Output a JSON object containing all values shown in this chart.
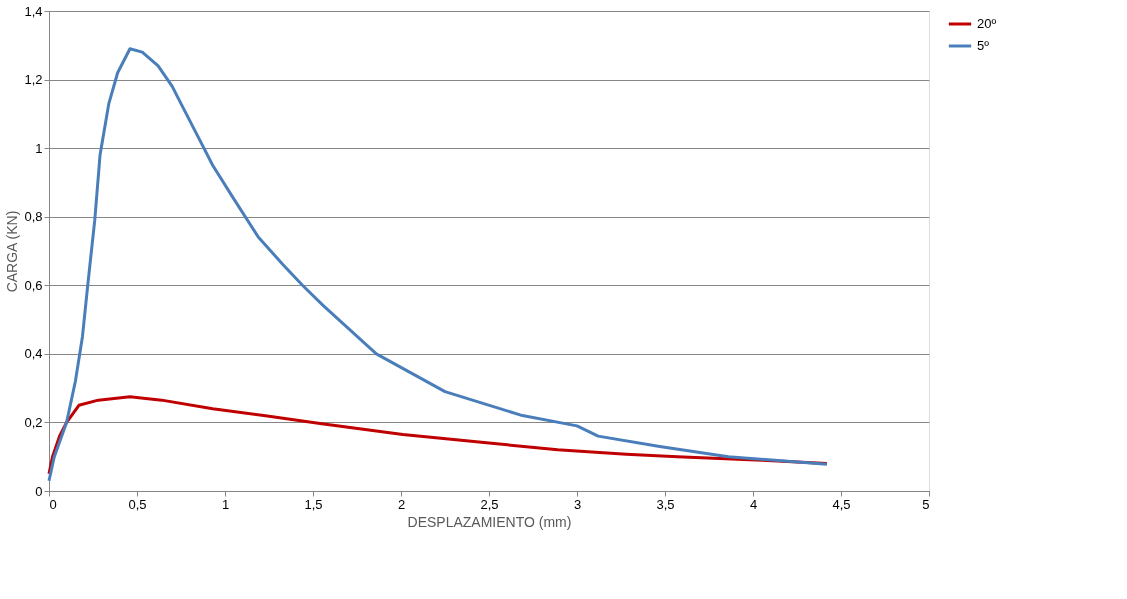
{
  "chart_data": {
    "type": "line",
    "xlabel": "DESPLAZAMIENTO (mm)",
    "ylabel": "CARGA (KN)",
    "xlim": [
      0,
      5
    ],
    "ylim": [
      0,
      1.4
    ],
    "xticks": [
      0,
      {
        "value": 0.5,
        "label": "0,5"
      },
      1,
      {
        "value": 1.5,
        "label": "1,5"
      },
      2,
      {
        "value": 2.5,
        "label": "2,5"
      },
      3,
      {
        "value": 3.5,
        "label": "3,5"
      },
      4,
      {
        "value": 4.5,
        "label": "4,5"
      },
      5
    ],
    "yticks": [
      0,
      {
        "value": 0.2,
        "label": "0,2"
      },
      {
        "value": 0.4,
        "label": "0,4"
      },
      {
        "value": 0.6,
        "label": "0,6"
      },
      {
        "value": 0.8,
        "label": "0,8"
      },
      1,
      {
        "value": 1.2,
        "label": "1,2"
      },
      {
        "value": 1.4,
        "label": "1,4"
      }
    ],
    "grid": "y",
    "legend": "right",
    "marker": "none",
    "line_style": "solid",
    "series": [
      {
        "name": "20º",
        "color": "#c00000",
        "x": [
          0,
          0.02,
          0.06,
          0.1,
          0.17,
          0.28,
          0.46,
          0.64,
          0.93,
          1.22,
          1.55,
          2.01,
          2.5,
          2.89,
          3.28,
          3.57,
          4.05,
          4.42
        ],
        "values": [
          0.05,
          0.1,
          0.16,
          0.2,
          0.25,
          0.265,
          0.275,
          0.265,
          0.24,
          0.22,
          0.196,
          0.165,
          0.14,
          0.12,
          0.107,
          0.1,
          0.09,
          0.08
        ]
      },
      {
        "name": "5º",
        "color": "#4a7ebb",
        "x": [
          0,
          0.03,
          0.1,
          0.15,
          0.19,
          0.22,
          0.26,
          0.29,
          0.34,
          0.39,
          0.46,
          0.53,
          0.62,
          0.7,
          0.75,
          0.84,
          0.93,
          1.04,
          1.19,
          1.33,
          1.44,
          1.56,
          1.86,
          2.25,
          2.69,
          3.0,
          3.12,
          3.47,
          3.86,
          4.42
        ],
        "values": [
          0.03,
          0.1,
          0.2,
          0.32,
          0.45,
          0.6,
          0.79,
          0.98,
          1.13,
          1.22,
          1.29,
          1.28,
          1.24,
          1.18,
          1.13,
          1.04,
          0.95,
          0.86,
          0.74,
          0.66,
          0.6,
          0.54,
          0.4,
          0.29,
          0.22,
          0.19,
          0.16,
          0.13,
          0.1,
          0.078
        ]
      }
    ]
  }
}
